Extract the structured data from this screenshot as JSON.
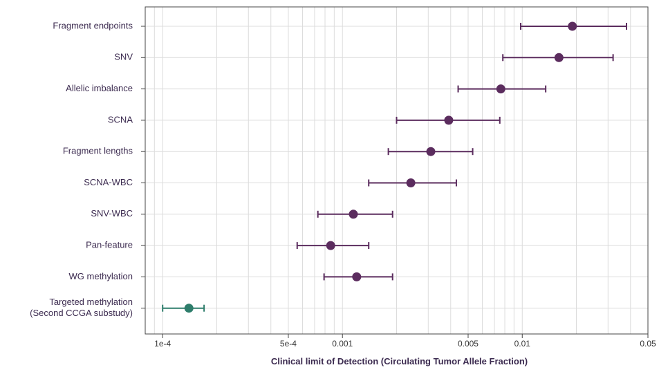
{
  "chart_data": {
    "type": "scatter",
    "orientation": "horizontal",
    "title": "",
    "xlabel": "Clinical limit of Detection (Circulating Tumor Allele Fraction)",
    "ylabel": "",
    "x_scale": "log",
    "xlim": [
      8e-05,
      0.05
    ],
    "x_tick_labels": [
      {
        "value": 0.0001,
        "label": "1e-4"
      },
      {
        "value": 0.0005,
        "label": "5e-4"
      },
      {
        "value": 0.001,
        "label": "0.001"
      },
      {
        "value": 0.005,
        "label": "0.005"
      },
      {
        "value": 0.01,
        "label": "0.01"
      },
      {
        "value": 0.05,
        "label": "0.05"
      }
    ],
    "grid": true,
    "colors": {
      "default": "#5b2c5e",
      "highlight": "#2e7d6b",
      "grid": "#dcdcdc",
      "frame": "#444444"
    },
    "points": [
      {
        "label": "Fragment endpoints",
        "estimate": 0.019,
        "lower": 0.0098,
        "upper": 0.038,
        "color": "default"
      },
      {
        "label": "SNV",
        "estimate": 0.016,
        "lower": 0.0078,
        "upper": 0.032,
        "color": "default"
      },
      {
        "label": "Allelic imbalance",
        "estimate": 0.0076,
        "lower": 0.0044,
        "upper": 0.0135,
        "color": "default"
      },
      {
        "label": "SCNA",
        "estimate": 0.0039,
        "lower": 0.002,
        "upper": 0.0075,
        "color": "default"
      },
      {
        "label": "Fragment lengths",
        "estimate": 0.0031,
        "lower": 0.0018,
        "upper": 0.0053,
        "color": "default"
      },
      {
        "label": "SCNA-WBC",
        "estimate": 0.0024,
        "lower": 0.0014,
        "upper": 0.0043,
        "color": "default"
      },
      {
        "label": "SNV-WBC",
        "estimate": 0.00115,
        "lower": 0.00073,
        "upper": 0.0019,
        "color": "default"
      },
      {
        "label": "Pan-feature",
        "estimate": 0.00086,
        "lower": 0.00056,
        "upper": 0.0014,
        "color": "default"
      },
      {
        "label": "WG methylation",
        "estimate": 0.0012,
        "lower": 0.00079,
        "upper": 0.0019,
        "color": "default"
      },
      {
        "label": "Targeted methylation\n(Second CCGA substudy)",
        "estimate": 0.00014,
        "lower": 0.0001,
        "upper": 0.00017,
        "color": "highlight"
      }
    ]
  }
}
